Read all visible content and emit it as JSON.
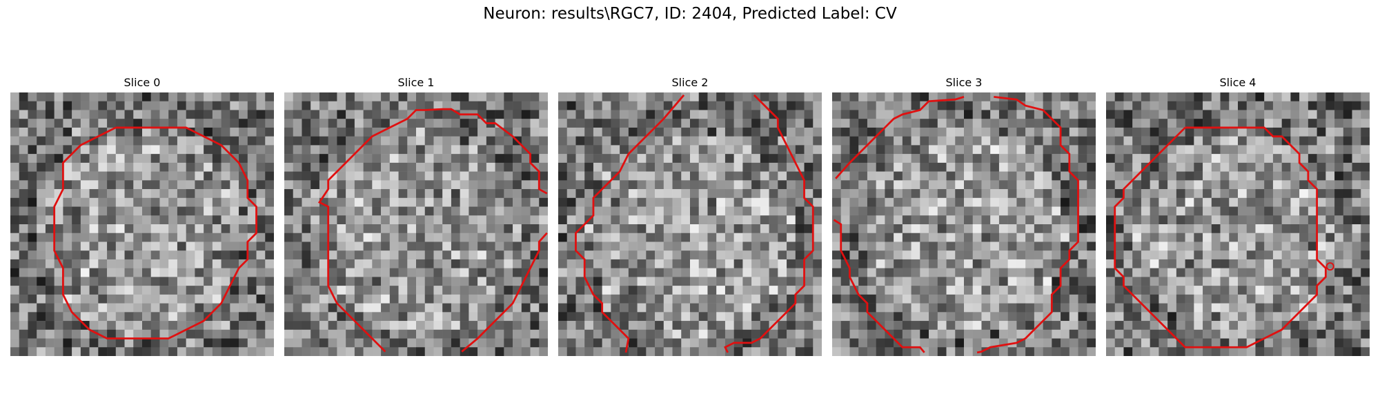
{
  "figure": {
    "title": "Neuron: results\\RGC7, ID: 2404, Predicted Label: CV"
  },
  "colors": {
    "contour": "#e01010",
    "background": "#ffffff"
  },
  "slices": [
    {
      "title": "Slice 0",
      "seed": 11
    },
    {
      "title": "Slice 1",
      "seed": 23
    },
    {
      "title": "Slice 2",
      "seed": 37
    },
    {
      "title": "Slice 3",
      "seed": 51
    },
    {
      "title": "Slice 4",
      "seed": 67
    }
  ]
}
